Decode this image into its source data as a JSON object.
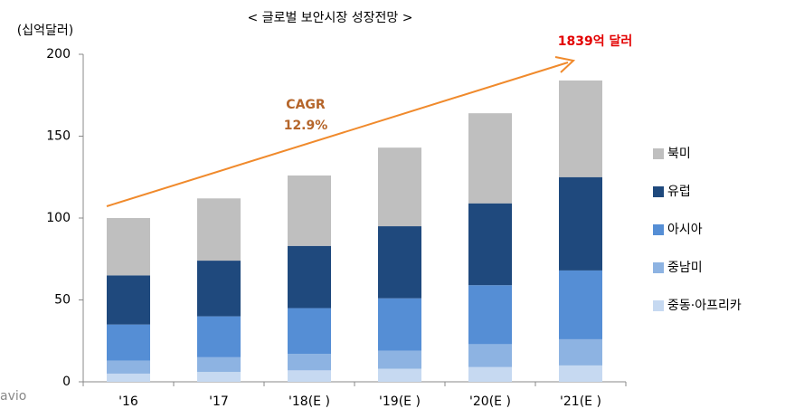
{
  "chart_data": {
    "type": "stacked_bar",
    "title": "< 글로벌 보안시장 성장전망 >",
    "y_label": "(십억달러)",
    "categories": [
      "'16",
      "'17",
      "'18(E )",
      "'19(E )",
      "'20(E )",
      "'21(E )"
    ],
    "series": [
      {
        "name": "중동·아프리카",
        "color": "#c6d9f1",
        "values": [
          5,
          6,
          7,
          8,
          9,
          10
        ]
      },
      {
        "name": "중남미",
        "color": "#8db3e2",
        "values": [
          8,
          9,
          10,
          11,
          14,
          16
        ]
      },
      {
        "name": "아시아",
        "color": "#558ed5",
        "values": [
          22,
          25,
          28,
          32,
          36,
          42
        ]
      },
      {
        "name": "유럽",
        "color": "#1f497d",
        "values": [
          30,
          34,
          38,
          44,
          50,
          57
        ]
      },
      {
        "name": "북미",
        "color": "#bfbfbf",
        "values": [
          35,
          38,
          43,
          48,
          55,
          59
        ]
      }
    ],
    "ylim": [
      0,
      200
    ],
    "yticks": [
      0,
      50,
      100,
      150,
      200
    ],
    "grid": false,
    "annotations": [
      "1839억 달러",
      "CAGR",
      "12.9%"
    ],
    "watermark": "avio"
  }
}
